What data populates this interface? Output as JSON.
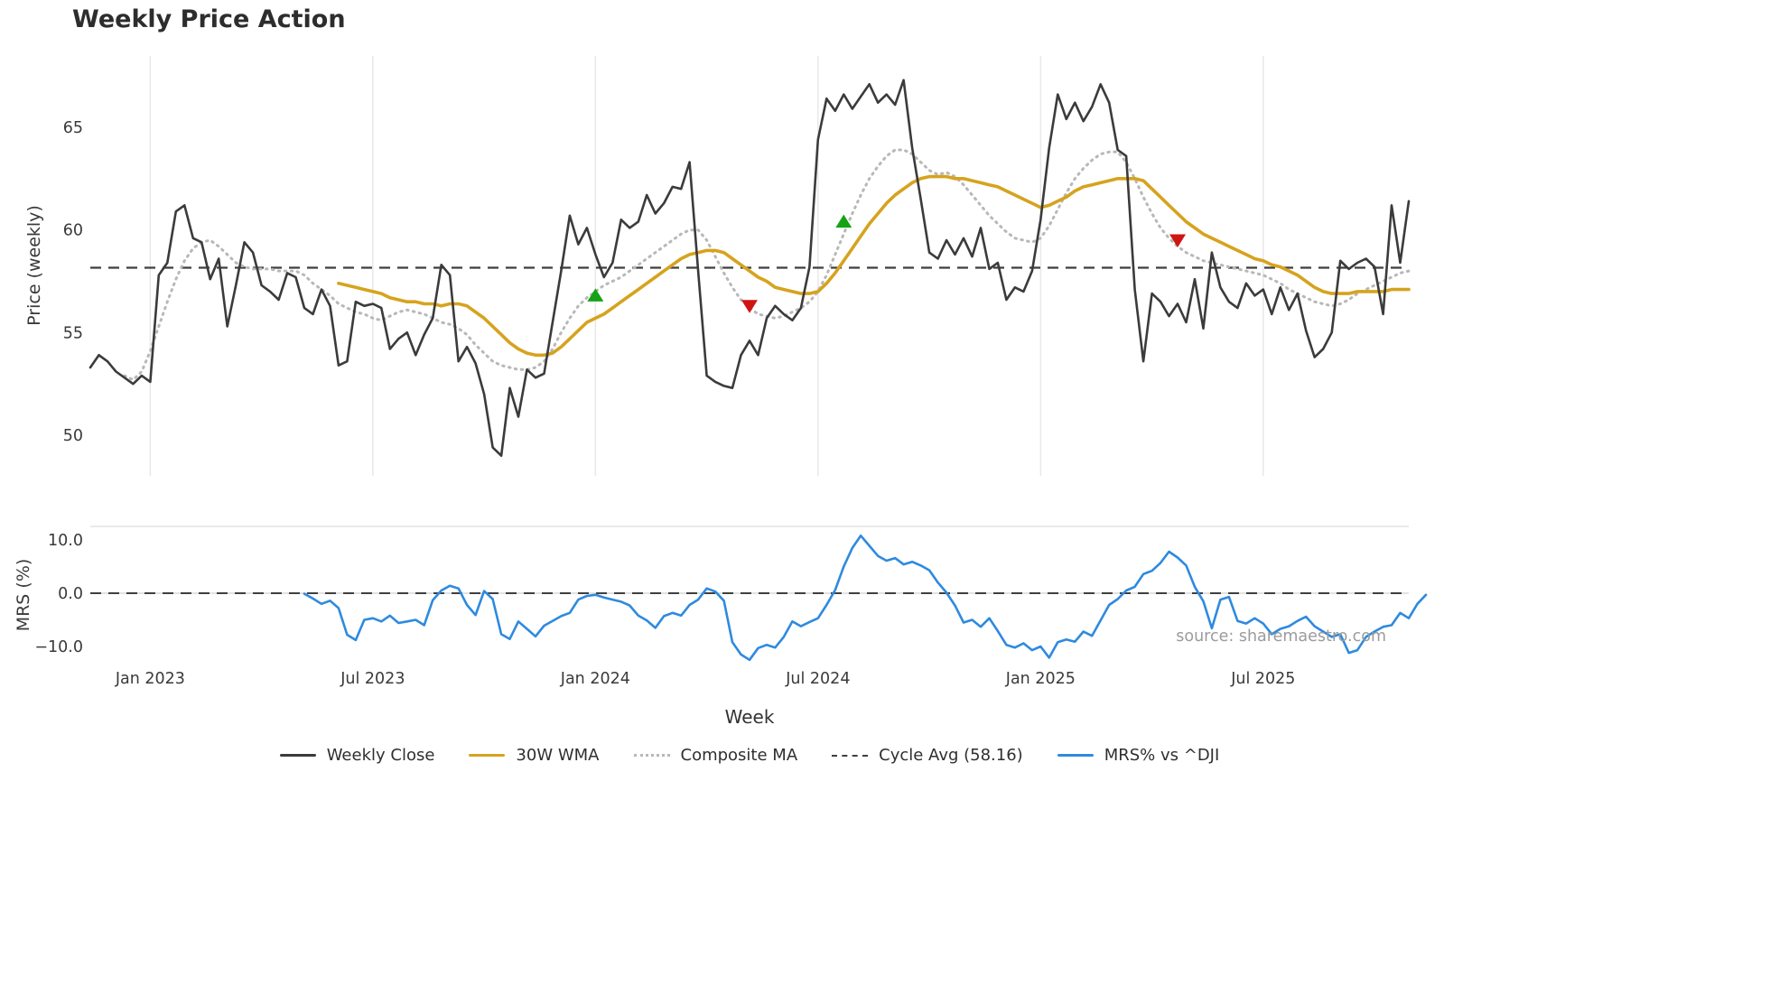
{
  "title": "Weekly Price Action",
  "xlabel": "Week",
  "source": "source: sharemaestro.com",
  "legend": [
    {
      "label": "Weekly Close",
      "color": "#3b3b3b",
      "style": "solid"
    },
    {
      "label": "30W WMA",
      "color": "#d6a31e",
      "style": "solid"
    },
    {
      "label": "Composite MA",
      "color": "#b8b8b8",
      "style": "dotted"
    },
    {
      "label": "Cycle Avg (58.16)",
      "color": "#3f3f3f",
      "style": "dashed"
    },
    {
      "label": "MRS% vs ^DJI",
      "color": "#2e8ade",
      "style": "solid"
    }
  ],
  "chart_data": {
    "type": "line",
    "x_unit": "week",
    "weeks_total": 154,
    "x_ticks": [
      {
        "week": 7,
        "label": "Jan 2023"
      },
      {
        "week": 33,
        "label": "Jul 2023"
      },
      {
        "week": 59,
        "label": "Jan 2024"
      },
      {
        "week": 85,
        "label": "Jul 2024"
      },
      {
        "week": 111,
        "label": "Jan 2025"
      },
      {
        "week": 137,
        "label": "Jul 2025"
      }
    ],
    "colors": {
      "weekly_close": "#3b3b3b",
      "wma_30w": "#d6a31e",
      "composite_ma": "#b8b8b8",
      "cycle_avg": "#3f3f3f",
      "mrs": "#2e8ade",
      "buy": "#15a315",
      "sell": "#cf1414",
      "grid": "#e8e8e8",
      "tick_text": "#3a3a3a"
    },
    "price_panel": {
      "ylabel": "Price (weekly)",
      "ylim": [
        48.0,
        68.5
      ],
      "yticks": [
        50,
        55,
        60,
        65
      ],
      "cycle_avg": 58.16,
      "grid": "vertical-only",
      "series": {
        "weekly_close": {
          "name": "Weekly Close",
          "start_week": 0,
          "values": [
            53.3,
            53.9,
            53.6,
            53.1,
            52.8,
            52.5,
            52.9,
            52.6,
            57.8,
            58.4,
            60.9,
            61.2,
            59.6,
            59.4,
            57.6,
            58.6,
            55.3,
            57.3,
            59.4,
            58.9,
            57.3,
            57.0,
            56.6,
            57.9,
            57.7,
            56.2,
            55.9,
            57.1,
            56.3,
            53.4,
            53.6,
            56.5,
            56.3,
            56.4,
            56.2,
            54.2,
            54.7,
            55.0,
            53.9,
            54.9,
            55.7,
            58.3,
            57.8,
            53.6,
            54.3,
            53.5,
            52.0,
            49.4,
            49.0,
            52.3,
            50.9,
            53.2,
            52.8,
            53.0,
            55.5,
            58.0,
            60.7,
            59.3,
            60.1,
            58.8,
            57.7,
            58.4,
            60.5,
            60.1,
            60.4,
            61.7,
            60.8,
            61.3,
            62.1,
            62.0,
            63.3,
            58.0,
            52.9,
            52.6,
            52.4,
            52.3,
            53.9,
            54.6,
            53.9,
            55.7,
            56.3,
            55.9,
            55.6,
            56.2,
            58.2,
            64.4,
            66.4,
            65.8,
            66.6,
            65.9,
            66.5,
            67.1,
            66.2,
            66.6,
            66.1,
            67.3,
            64.0,
            61.5,
            58.9,
            58.6,
            59.5,
            58.8,
            59.6,
            58.7,
            60.1,
            58.1,
            58.4,
            56.6,
            57.2,
            57.0,
            58.0,
            60.5,
            64.0,
            66.6,
            65.4,
            66.2,
            65.3,
            66.0,
            67.1,
            66.2,
            63.9,
            63.6,
            57.1,
            53.6,
            56.9,
            56.5,
            55.8,
            56.4,
            55.5,
            57.6,
            55.2,
            58.9,
            57.2,
            56.5,
            56.2,
            57.4,
            56.8,
            57.1,
            55.9,
            57.2,
            56.1,
            56.9,
            55.1,
            53.8,
            54.2,
            55.0,
            58.5,
            58.1,
            58.4,
            58.6,
            58.2,
            55.9,
            61.2,
            58.4,
            61.4
          ]
        },
        "wma_30w": {
          "name": "30W WMA",
          "start_week": 29,
          "values": [
            57.4,
            57.3,
            57.2,
            57.1,
            57.0,
            56.9,
            56.7,
            56.6,
            56.5,
            56.5,
            56.4,
            56.4,
            56.3,
            56.4,
            56.4,
            56.3,
            56.0,
            55.7,
            55.3,
            54.9,
            54.5,
            54.2,
            54.0,
            53.9,
            53.9,
            54.0,
            54.3,
            54.7,
            55.1,
            55.5,
            55.7,
            55.9,
            56.2,
            56.5,
            56.8,
            57.1,
            57.4,
            57.7,
            58.0,
            58.3,
            58.6,
            58.8,
            58.9,
            59.0,
            59.0,
            58.9,
            58.6,
            58.3,
            58.0,
            57.7,
            57.5,
            57.2,
            57.1,
            57.0,
            56.9,
            56.9,
            57.0,
            57.4,
            57.9,
            58.5,
            59.1,
            59.7,
            60.3,
            60.8,
            61.3,
            61.7,
            62.0,
            62.3,
            62.5,
            62.6,
            62.6,
            62.6,
            62.5,
            62.5,
            62.4,
            62.3,
            62.2,
            62.1,
            61.9,
            61.7,
            61.5,
            61.3,
            61.1,
            61.2,
            61.4,
            61.6,
            61.9,
            62.1,
            62.2,
            62.3,
            62.4,
            62.5,
            62.5,
            62.5,
            62.4,
            62.0,
            61.6,
            61.2,
            60.8,
            60.4,
            60.1,
            59.8,
            59.6,
            59.4,
            59.2,
            59.0,
            58.8,
            58.6,
            58.5,
            58.3,
            58.2,
            58.0,
            57.8,
            57.5,
            57.2,
            57.0,
            56.9,
            56.9,
            56.9,
            57.0,
            57.0,
            57.0,
            57.0,
            57.1,
            57.1,
            57.1
          ]
        },
        "composite_ma": {
          "name": "Composite MA",
          "start_week": 4,
          "values": [
            52.9,
            52.7,
            53.1,
            54.1,
            55.3,
            56.5,
            57.6,
            58.5,
            59.1,
            59.4,
            59.5,
            59.2,
            58.8,
            58.4,
            58.2,
            58.1,
            58.1,
            58.1,
            58.0,
            58.0,
            58.0,
            57.8,
            57.4,
            57.1,
            56.8,
            56.4,
            56.2,
            56.0,
            55.9,
            55.7,
            55.6,
            55.8,
            56.0,
            56.1,
            56.0,
            55.9,
            55.7,
            55.5,
            55.4,
            55.2,
            54.9,
            54.4,
            54.0,
            53.6,
            53.4,
            53.3,
            53.2,
            53.2,
            53.3,
            53.6,
            54.2,
            55.0,
            55.7,
            56.3,
            56.7,
            57.0,
            57.3,
            57.5,
            57.7,
            58.0,
            58.3,
            58.6,
            58.9,
            59.2,
            59.5,
            59.8,
            60.0,
            60.0,
            59.5,
            58.7,
            57.9,
            57.2,
            56.6,
            56.2,
            55.9,
            55.8,
            55.7,
            55.8,
            56.0,
            56.2,
            56.5,
            57.0,
            57.8,
            58.8,
            59.8,
            60.8,
            61.7,
            62.5,
            63.1,
            63.6,
            63.9,
            63.9,
            63.7,
            63.3,
            62.9,
            62.7,
            62.8,
            62.6,
            62.2,
            61.7,
            61.2,
            60.7,
            60.3,
            59.9,
            59.6,
            59.5,
            59.4,
            59.6,
            60.2,
            61.0,
            61.8,
            62.5,
            63.0,
            63.4,
            63.7,
            63.8,
            63.8,
            63.3,
            62.5,
            61.6,
            60.8,
            60.1,
            59.6,
            59.2,
            58.9,
            58.7,
            58.5,
            58.4,
            58.3,
            58.2,
            58.1,
            58.0,
            57.9,
            57.8,
            57.6,
            57.4,
            57.1,
            56.9,
            56.7,
            56.5,
            56.4,
            56.3,
            56.4,
            56.6,
            56.9,
            57.1,
            57.3,
            57.5,
            57.7,
            57.9,
            58.0
          ]
        }
      },
      "buy_signals": [
        {
          "week": 59,
          "value": 56.8
        },
        {
          "week": 88,
          "value": 60.4
        }
      ],
      "sell_signals": [
        {
          "week": 77,
          "value": 56.3
        },
        {
          "week": 127,
          "value": 59.5
        }
      ]
    },
    "mrs_panel": {
      "ylabel": "MRS (%)",
      "ylim": [
        -13.6,
        12.5
      ],
      "yticks": [
        -10,
        0,
        10
      ],
      "ytick_labels": [
        "−10.0",
        "0.0",
        "10.0"
      ],
      "zero_line": 0,
      "series": {
        "mrs_vs_dji": {
          "name": "MRS% vs ^DJI",
          "start_week": 25,
          "values": [
            -0.1,
            -1.0,
            -2.0,
            -1.4,
            -2.8,
            -7.8,
            -8.8,
            -5.0,
            -4.7,
            -5.3,
            -4.2,
            -5.6,
            -5.3,
            -5.0,
            -6.0,
            -1.3,
            0.5,
            1.4,
            0.9,
            -2.2,
            -4.1,
            0.4,
            -1.1,
            -7.7,
            -8.6,
            -5.3,
            -6.7,
            -8.1,
            -6.1,
            -5.2,
            -4.3,
            -3.7,
            -1.2,
            -0.5,
            -0.3,
            -0.8,
            -1.2,
            -1.6,
            -2.3,
            -4.2,
            -5.1,
            -6.5,
            -4.3,
            -3.7,
            -4.2,
            -2.2,
            -1.2,
            0.9,
            0.3,
            -1.4,
            -9.2,
            -11.5,
            -12.5,
            -10.3,
            -9.7,
            -10.2,
            -8.2,
            -5.3,
            -6.2,
            -5.4,
            -4.7,
            -2.2,
            0.6,
            5.0,
            8.5,
            10.8,
            8.9,
            7.0,
            6.1,
            6.6,
            5.4,
            5.9,
            5.2,
            4.3,
            2.0,
            0.1,
            -2.3,
            -5.5,
            -5.0,
            -6.3,
            -4.7,
            -7.1,
            -9.7,
            -10.2,
            -9.4,
            -10.7,
            -10.0,
            -12.1,
            -9.2,
            -8.7,
            -9.1,
            -7.2,
            -8.0,
            -5.1,
            -2.2,
            -1.1,
            0.5,
            1.2,
            3.6,
            4.2,
            5.7,
            7.8,
            6.7,
            5.2,
            1.2,
            -1.5,
            -6.6,
            -1.2,
            -0.7,
            -5.2,
            -5.7,
            -4.7,
            -5.7,
            -7.7,
            -6.7,
            -6.2,
            -5.2,
            -4.4,
            -6.2,
            -7.2,
            -8.2,
            -7.7,
            -11.2,
            -10.7,
            -8.2,
            -7.2,
            -6.3,
            -6.0,
            -3.7,
            -4.7,
            -2.0,
            -0.3
          ]
        }
      }
    }
  }
}
